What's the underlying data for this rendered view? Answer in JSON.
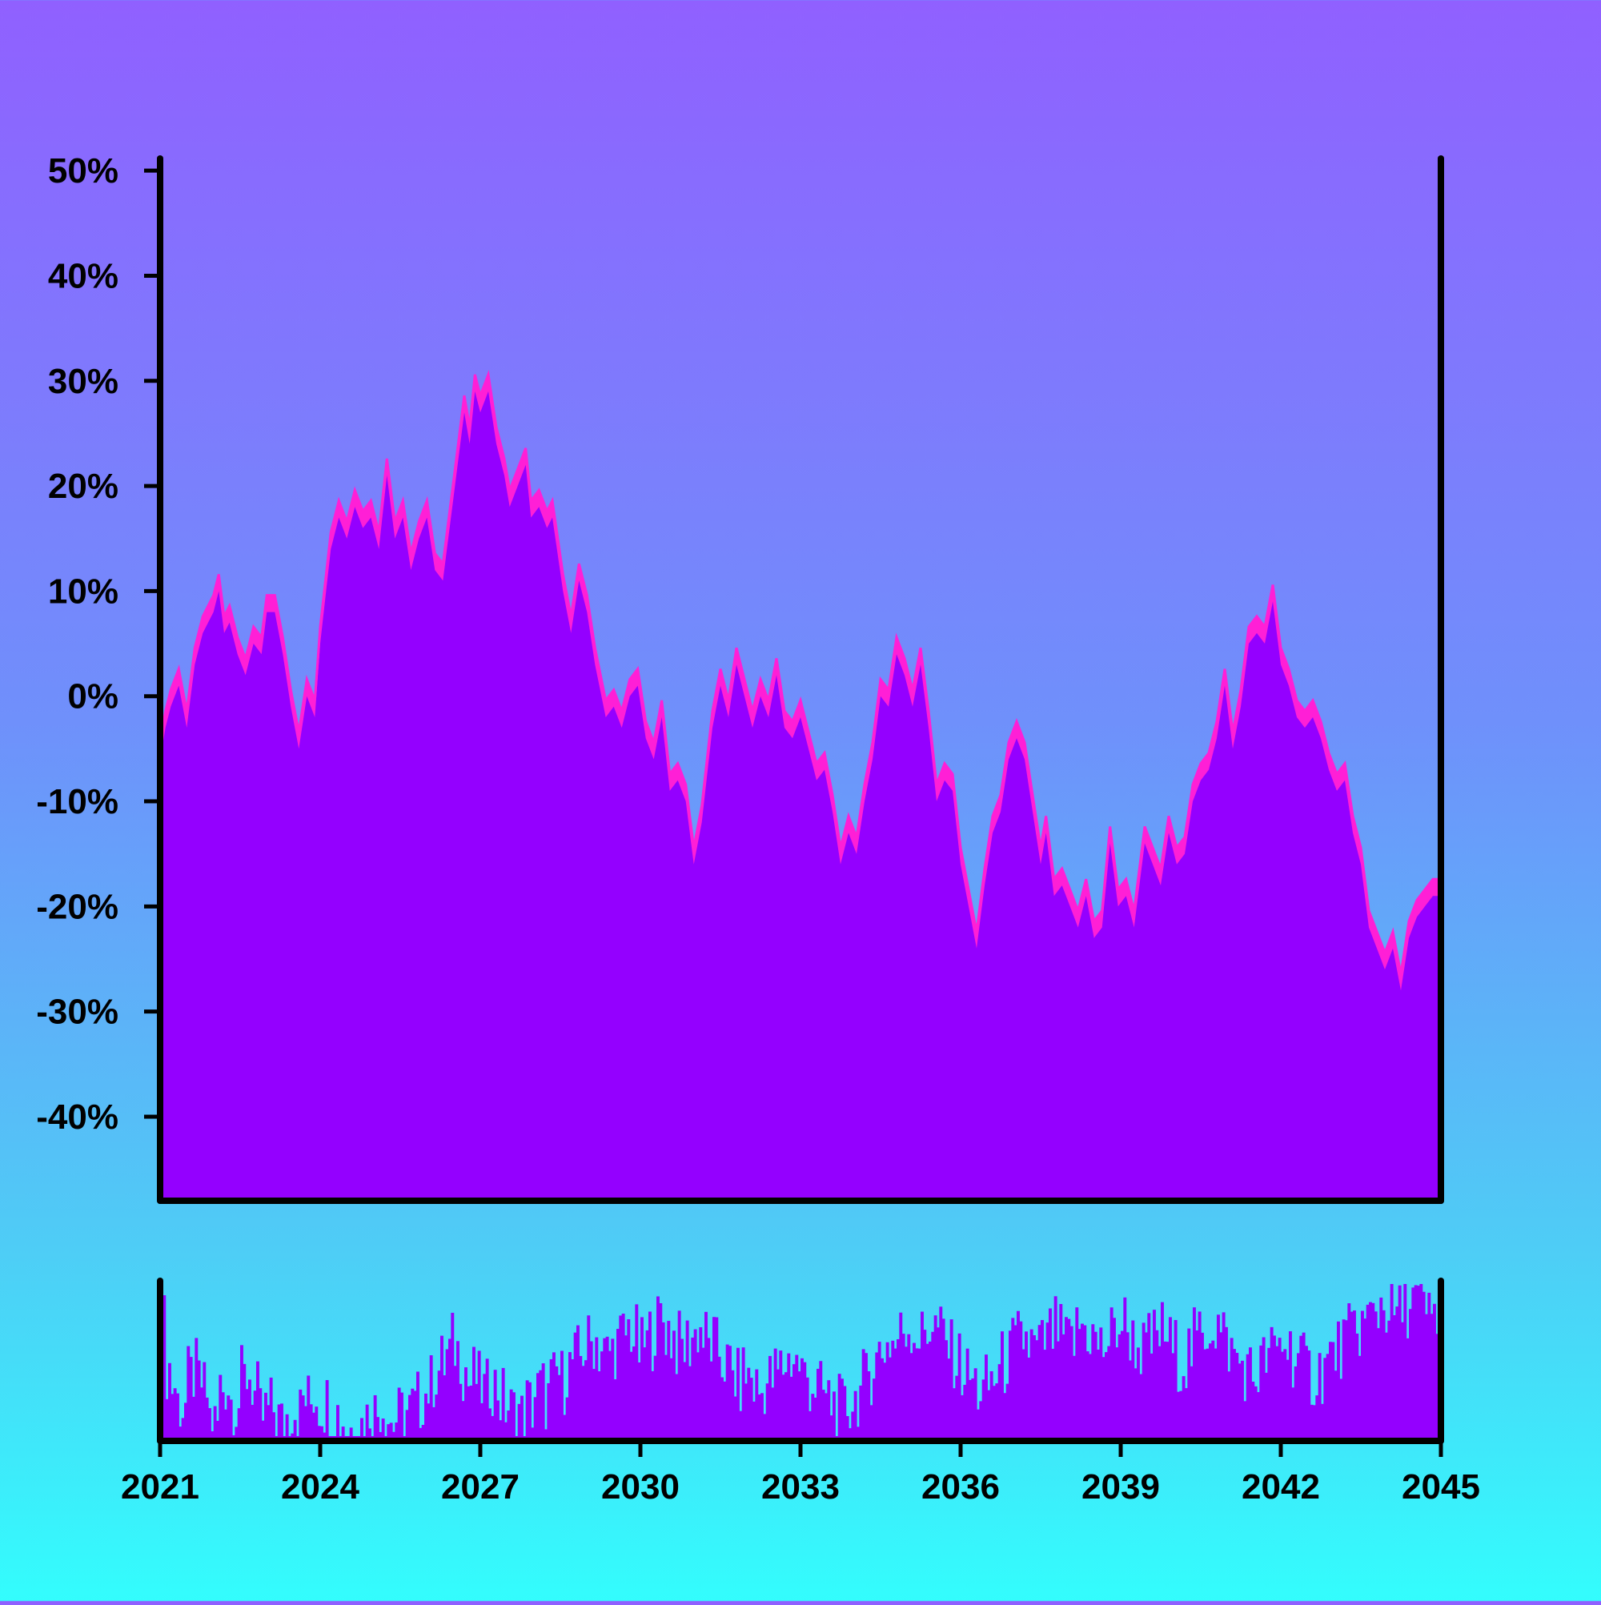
{
  "chart_data": {
    "type": "area",
    "title": "",
    "xlabel": "",
    "ylabel": "",
    "x_ticks": [
      "2021",
      "2024",
      "2027",
      "2030",
      "2033",
      "2036",
      "2039",
      "2042",
      "2045"
    ],
    "y_ticks": [
      "50%",
      "40%",
      "30%",
      "20%",
      "10%",
      "0%",
      "-10%",
      "-20%",
      "-30%",
      "-40%"
    ],
    "xlim": [
      2021,
      2045
    ],
    "ylim": [
      -48,
      51
    ],
    "grid": false,
    "legend": "none",
    "colors": {
      "area_fill": "#9400ff",
      "band": "#ff1fd6",
      "volume": "#9400ff",
      "axis": "#000000"
    },
    "series": [
      {
        "values": [
          [
            2021.0,
            -6
          ],
          [
            2021.1,
            -3
          ],
          [
            2021.2,
            -1
          ],
          [
            2021.35,
            1
          ],
          [
            2021.5,
            -3
          ],
          [
            2021.65,
            3
          ],
          [
            2021.8,
            6
          ],
          [
            2022.0,
            8
          ],
          [
            2022.1,
            10
          ],
          [
            2022.2,
            6
          ],
          [
            2022.3,
            7
          ],
          [
            2022.45,
            4
          ],
          [
            2022.6,
            2
          ],
          [
            2022.75,
            5
          ],
          [
            2022.9,
            4
          ],
          [
            2023.0,
            8
          ],
          [
            2023.15,
            8
          ],
          [
            2023.3,
            4
          ],
          [
            2023.45,
            -1
          ],
          [
            2023.6,
            -5
          ],
          [
            2023.75,
            0
          ],
          [
            2023.9,
            -2
          ],
          [
            2024.0,
            5
          ],
          [
            2024.2,
            14
          ],
          [
            2024.35,
            17
          ],
          [
            2024.5,
            15
          ],
          [
            2024.65,
            18
          ],
          [
            2024.8,
            16
          ],
          [
            2024.95,
            17
          ],
          [
            2025.1,
            14
          ],
          [
            2025.25,
            21
          ],
          [
            2025.4,
            15
          ],
          [
            2025.55,
            17
          ],
          [
            2025.7,
            12
          ],
          [
            2025.85,
            15
          ],
          [
            2026.0,
            17
          ],
          [
            2026.15,
            12
          ],
          [
            2026.3,
            11
          ],
          [
            2026.5,
            19
          ],
          [
            2026.7,
            27
          ],
          [
            2026.8,
            24
          ],
          [
            2026.9,
            29
          ],
          [
            2027.0,
            27
          ],
          [
            2027.15,
            29
          ],
          [
            2027.3,
            24
          ],
          [
            2027.45,
            21
          ],
          [
            2027.55,
            18
          ],
          [
            2027.7,
            20
          ],
          [
            2027.85,
            22
          ],
          [
            2027.95,
            17
          ],
          [
            2028.1,
            18
          ],
          [
            2028.25,
            16
          ],
          [
            2028.35,
            17
          ],
          [
            2028.55,
            10
          ],
          [
            2028.7,
            6
          ],
          [
            2028.85,
            11
          ],
          [
            2029.0,
            8
          ],
          [
            2029.15,
            3
          ],
          [
            2029.35,
            -2
          ],
          [
            2029.5,
            -1
          ],
          [
            2029.65,
            -3
          ],
          [
            2029.8,
            0
          ],
          [
            2029.95,
            1
          ],
          [
            2030.1,
            -4
          ],
          [
            2030.25,
            -6
          ],
          [
            2030.4,
            -2
          ],
          [
            2030.55,
            -9
          ],
          [
            2030.7,
            -8
          ],
          [
            2030.85,
            -10
          ],
          [
            2031.0,
            -16
          ],
          [
            2031.15,
            -12
          ],
          [
            2031.35,
            -3
          ],
          [
            2031.5,
            1
          ],
          [
            2031.65,
            -2
          ],
          [
            2031.8,
            3
          ],
          [
            2031.95,
            0
          ],
          [
            2032.1,
            -3
          ],
          [
            2032.25,
            0
          ],
          [
            2032.4,
            -2
          ],
          [
            2032.55,
            2
          ],
          [
            2032.7,
            -3
          ],
          [
            2032.85,
            -4
          ],
          [
            2033.0,
            -2
          ],
          [
            2033.15,
            -5
          ],
          [
            2033.3,
            -8
          ],
          [
            2033.45,
            -7
          ],
          [
            2033.6,
            -11
          ],
          [
            2033.75,
            -16
          ],
          [
            2033.9,
            -13
          ],
          [
            2034.05,
            -15
          ],
          [
            2034.2,
            -10
          ],
          [
            2034.35,
            -6
          ],
          [
            2034.5,
            0
          ],
          [
            2034.65,
            -1
          ],
          [
            2034.8,
            4
          ],
          [
            2034.95,
            2
          ],
          [
            2035.1,
            -1
          ],
          [
            2035.25,
            3
          ],
          [
            2035.4,
            -3
          ],
          [
            2035.55,
            -10
          ],
          [
            2035.7,
            -8
          ],
          [
            2035.85,
            -9
          ],
          [
            2036.0,
            -16
          ],
          [
            2036.15,
            -20
          ],
          [
            2036.3,
            -24
          ],
          [
            2036.45,
            -18
          ],
          [
            2036.6,
            -13
          ],
          [
            2036.75,
            -11
          ],
          [
            2036.9,
            -6
          ],
          [
            2037.05,
            -4
          ],
          [
            2037.2,
            -6
          ],
          [
            2037.35,
            -11
          ],
          [
            2037.5,
            -16
          ],
          [
            2037.6,
            -13
          ],
          [
            2037.75,
            -19
          ],
          [
            2037.9,
            -18
          ],
          [
            2038.05,
            -20
          ],
          [
            2038.2,
            -22
          ],
          [
            2038.35,
            -19
          ],
          [
            2038.5,
            -23
          ],
          [
            2038.65,
            -22
          ],
          [
            2038.8,
            -14
          ],
          [
            2038.95,
            -20
          ],
          [
            2039.1,
            -19
          ],
          [
            2039.25,
            -22
          ],
          [
            2039.45,
            -14
          ],
          [
            2039.6,
            -16
          ],
          [
            2039.75,
            -18
          ],
          [
            2039.9,
            -13
          ],
          [
            2040.05,
            -16
          ],
          [
            2040.2,
            -15
          ],
          [
            2040.35,
            -10
          ],
          [
            2040.5,
            -8
          ],
          [
            2040.65,
            -7
          ],
          [
            2040.8,
            -4
          ],
          [
            2040.95,
            1
          ],
          [
            2041.1,
            -5
          ],
          [
            2041.25,
            -1
          ],
          [
            2041.4,
            5
          ],
          [
            2041.55,
            6
          ],
          [
            2041.7,
            5
          ],
          [
            2041.85,
            9
          ],
          [
            2042.0,
            3
          ],
          [
            2042.15,
            1
          ],
          [
            2042.3,
            -2
          ],
          [
            2042.45,
            -3
          ],
          [
            2042.6,
            -2
          ],
          [
            2042.75,
            -4
          ],
          [
            2042.9,
            -7
          ],
          [
            2043.05,
            -9
          ],
          [
            2043.2,
            -8
          ],
          [
            2043.35,
            -13
          ],
          [
            2043.5,
            -16
          ],
          [
            2043.65,
            -22
          ],
          [
            2043.8,
            -24
          ],
          [
            2043.95,
            -26
          ],
          [
            2044.1,
            -24
          ],
          [
            2044.25,
            -28
          ],
          [
            2044.4,
            -23
          ],
          [
            2044.55,
            -21
          ],
          [
            2044.7,
            -20
          ],
          [
            2044.85,
            -19
          ],
          [
            2045.0,
            -19
          ]
        ]
      }
    ],
    "volume": {
      "x_range": [
        2021,
        2045
      ],
      "count": 480,
      "values": [
        0.72,
        0.46,
        0.35,
        0.24,
        0.22,
        0.38,
        0.42,
        0.36,
        0.3,
        0.14,
        0.1,
        0.34,
        0.36,
        0.26,
        0.24,
        0.38,
        0.42,
        0.36,
        0.28,
        0.14,
        0.18,
        0.2,
        0.14,
        0.1,
        0.16,
        0.22,
        0.18,
        0.26,
        0.24,
        0.3,
        0.24,
        0.24,
        0.2,
        0.18,
        0.14,
        0.1,
        0.08,
        0.12,
        0.1,
        0.14,
        0.22,
        0.18,
        0.24,
        0.16,
        0.12,
        0.14,
        0.16,
        0.18,
        0.2,
        0.24,
        0.3,
        0.34,
        0.4,
        0.44,
        0.48,
        0.54,
        0.6,
        0.56,
        0.46,
        0.36,
        0.4,
        0.34,
        0.3,
        0.38,
        0.34,
        0.26,
        0.22,
        0.18,
        0.2,
        0.14,
        0.24,
        0.22,
        0.3,
        0.32,
        0.26,
        0.36,
        0.42,
        0.38,
        0.46,
        0.5,
        0.52,
        0.58,
        0.6,
        0.64,
        0.58,
        0.54,
        0.56,
        0.6,
        0.62,
        0.66,
        0.7,
        0.64,
        0.56,
        0.6,
        0.66,
        0.72,
        0.76,
        0.7,
        0.66,
        0.6,
        0.58,
        0.62,
        0.66,
        0.7,
        0.64,
        0.58,
        0.6,
        0.56,
        0.5,
        0.46,
        0.4,
        0.36,
        0.42,
        0.4,
        0.34,
        0.3,
        0.36,
        0.38,
        0.42,
        0.46,
        0.5,
        0.52,
        0.48,
        0.44,
        0.4,
        0.36,
        0.34,
        0.3,
        0.26,
        0.24,
        0.2,
        0.18,
        0.22,
        0.26,
        0.3,
        0.36,
        0.44,
        0.5,
        0.56,
        0.6,
        0.62,
        0.58,
        0.66,
        0.7,
        0.72,
        0.68,
        0.64,
        0.68,
        0.74,
        0.7,
        0.66,
        0.6,
        0.54,
        0.5,
        0.44,
        0.4,
        0.36,
        0.32,
        0.28,
        0.34,
        0.38,
        0.42,
        0.48,
        0.52,
        0.58,
        0.62,
        0.64,
        0.6,
        0.56,
        0.58,
        0.62,
        0.66,
        0.7,
        0.64,
        0.6,
        0.62,
        0.68,
        0.72,
        0.7,
        0.66,
        0.6,
        0.58,
        0.62,
        0.66,
        0.72,
        0.74,
        0.68,
        0.62,
        0.58,
        0.56,
        0.6,
        0.64,
        0.68,
        0.66,
        0.6,
        0.56,
        0.52,
        0.5,
        0.56,
        0.62,
        0.66,
        0.7,
        0.74,
        0.72,
        0.66,
        0.6,
        0.54,
        0.5,
        0.46,
        0.42,
        0.4,
        0.44,
        0.48,
        0.52,
        0.54,
        0.58,
        0.62,
        0.58,
        0.54,
        0.5,
        0.46,
        0.42,
        0.4,
        0.44,
        0.48,
        0.52,
        0.56,
        0.6,
        0.64,
        0.66,
        0.7,
        0.72,
        0.74,
        0.78,
        0.82,
        0.86,
        0.84,
        0.8,
        0.78,
        0.82,
        0.86,
        0.88,
        0.84,
        0.8,
        0.76,
        0.78,
        0.82
      ]
    }
  }
}
